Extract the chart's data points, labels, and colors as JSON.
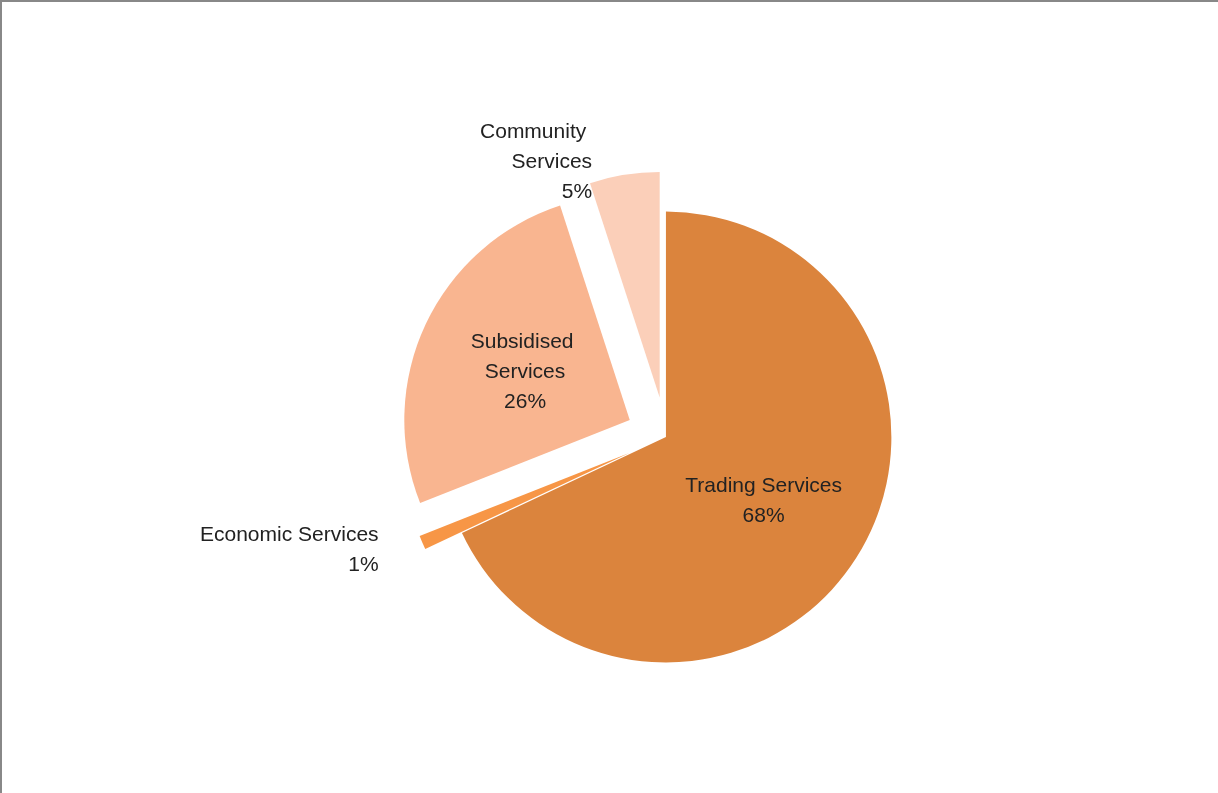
{
  "chart_data": {
    "type": "pie",
    "categories": [
      "Trading Services",
      "Economic Services",
      "Subsidised Services",
      "Community Services"
    ],
    "values": [
      68,
      1,
      26,
      5
    ],
    "colors": [
      "#db843d",
      "#f79646",
      "#f9b590",
      "#fbcfb9"
    ],
    "value_labels": [
      "68%",
      "1%",
      "26%",
      "5%"
    ],
    "legend": false
  }
}
